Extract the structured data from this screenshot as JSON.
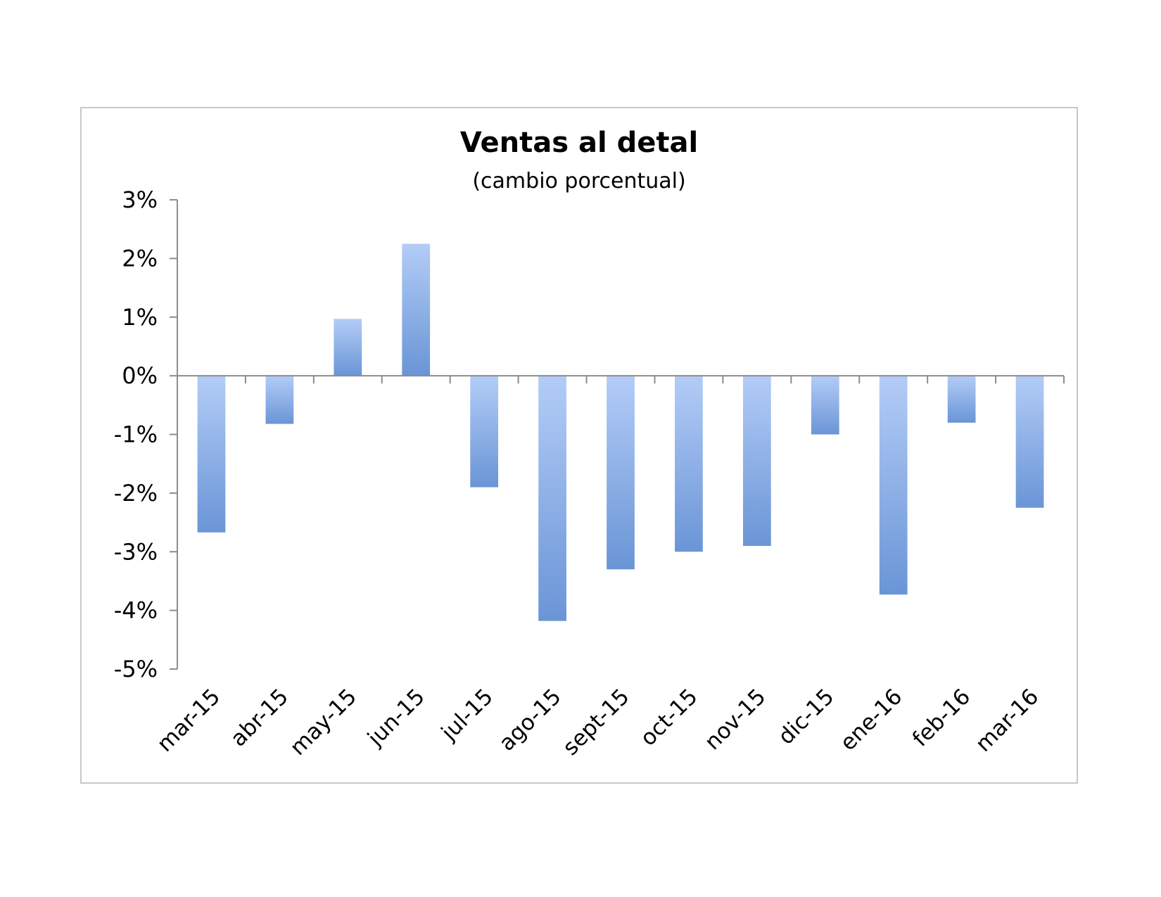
{
  "chart_data": {
    "type": "bar",
    "title": "Ventas al detal",
    "subtitle": "(cambio porcentual)",
    "xlabel": "",
    "ylabel": "",
    "categories": [
      "mar-15",
      "abr-15",
      "may-15",
      "jun-15",
      "jul-15",
      "ago-15",
      "sept-15",
      "oct-15",
      "nov-15",
      "dic-15",
      "ene-16",
      "feb-16",
      "mar-16"
    ],
    "values": [
      -2.67,
      -0.82,
      0.97,
      2.25,
      -1.9,
      -4.18,
      -3.3,
      -3.0,
      -2.9,
      -1.0,
      -3.73,
      -0.8,
      -2.25
    ],
    "ylim": [
      -5,
      3
    ],
    "yticks": [
      3,
      2,
      1,
      0,
      -1,
      -2,
      -3,
      -4,
      -5
    ],
    "ytick_labels": [
      "3%",
      "2%",
      "1%",
      "0%",
      "-1%",
      "-2%",
      "-3%",
      "-4%",
      "-5%"
    ],
    "grid": false,
    "legend": "none",
    "colors": {
      "bar_top": "#b3ccf7",
      "bar_bottom": "#6a95d6",
      "axis": "#8c8c8c"
    }
  }
}
